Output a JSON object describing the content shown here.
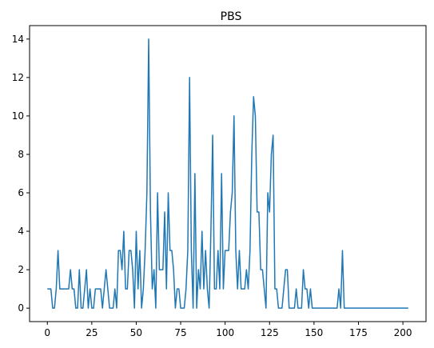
{
  "chart_data": {
    "type": "line",
    "title": "PBS",
    "xlabel": "",
    "ylabel": "",
    "xlim": [
      -10,
      213
    ],
    "ylim": [
      -0.7,
      14.7
    ],
    "xticks": [
      0,
      25,
      50,
      75,
      100,
      125,
      150,
      175,
      200
    ],
    "yticks": [
      0,
      2,
      4,
      6,
      8,
      10,
      12,
      14
    ],
    "grid": false,
    "line_color": "#1f77b4",
    "series": [
      {
        "values": [
          1,
          1,
          1,
          0,
          0,
          1,
          3,
          1,
          1,
          1,
          1,
          1,
          1,
          2,
          1,
          1,
          0,
          0,
          2,
          0,
          0,
          1,
          2,
          0,
          1,
          0,
          0,
          1,
          1,
          1,
          1,
          0,
          1,
          2,
          1,
          0,
          0,
          0,
          1,
          0,
          3,
          3,
          2,
          4,
          1,
          1,
          3,
          3,
          2,
          0,
          4,
          1,
          3,
          0,
          1,
          3,
          6,
          14,
          5,
          1,
          2,
          0,
          6,
          2,
          2,
          2,
          5,
          1,
          6,
          3,
          3,
          2,
          0,
          1,
          1,
          0,
          0,
          0,
          1,
          3,
          12,
          3,
          0,
          7,
          0,
          2,
          1,
          4,
          1,
          3,
          1,
          0,
          4,
          9,
          1,
          1,
          3,
          1,
          7,
          1,
          3,
          3,
          3,
          5,
          6,
          10,
          3,
          1,
          3,
          1,
          1,
          1,
          2,
          1,
          3,
          8,
          11,
          10,
          5,
          5,
          2,
          2,
          1,
          0,
          6,
          5,
          8,
          9,
          1,
          1,
          0,
          0,
          0,
          1,
          2,
          2,
          0,
          0,
          0,
          0,
          1,
          0,
          0,
          0,
          2,
          1,
          1,
          0,
          1,
          0,
          0,
          0,
          0,
          0,
          0,
          0,
          0,
          0,
          0,
          0,
          0,
          0,
          0,
          0,
          1,
          0,
          3,
          0,
          0,
          0,
          0,
          0,
          0,
          0,
          0,
          0,
          0,
          0,
          0,
          0,
          0,
          0,
          0,
          0,
          0,
          0,
          0,
          0,
          0,
          0,
          0,
          0,
          0,
          0,
          0,
          0,
          0,
          0,
          0,
          0,
          0,
          0,
          0,
          0
        ]
      }
    ]
  }
}
